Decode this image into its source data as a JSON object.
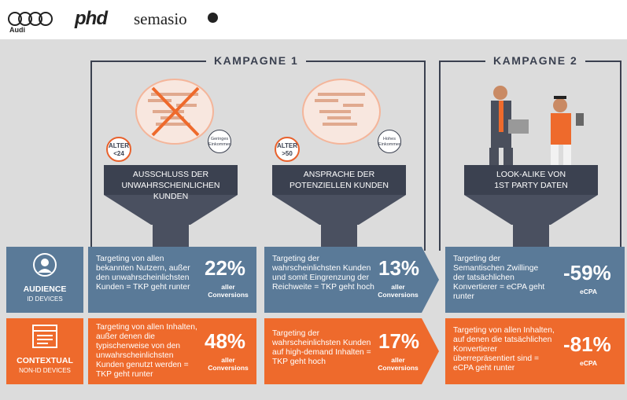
{
  "header": {
    "audi_label": "Audi",
    "phd_label": "phd",
    "semasio_label": "semasio"
  },
  "campaigns": {
    "k1": "KAMPAGNE 1",
    "k2": "KAMPAGNE 2"
  },
  "funnels": [
    {
      "label_line1": "AUSSCHLUSS DER",
      "label_line2": "UNWAHRSCHEINLICHEN KUNDEN",
      "age": "ALTER\n<24",
      "age_l1": "ALTER",
      "age_l2": "<24",
      "income_l1": "Geringes",
      "income_l2": "Einkommen"
    },
    {
      "label_line1": "ANSPRACHE DER",
      "label_line2": "POTENZIELLEN KUNDEN",
      "age_l1": "ALTER",
      "age_l2": ">50",
      "income_l1": "Hohes",
      "income_l2": "Einkommen"
    },
    {
      "label_line1": "LOOK-ALIKE VON",
      "label_line2": "1ST PARTY DATEN"
    }
  ],
  "rows": {
    "audience": {
      "title": "AUDIENCE",
      "subtitle": "ID DEVICES",
      "cells": [
        {
          "text": "Targeting von allen bekannten Nutzern, außer den unwahrscheinlichsten Kunden = TKP geht runter",
          "big": "22%",
          "small_l1": "aller",
          "small_l2": "Conversions"
        },
        {
          "text": "Targeting der wahrscheinlichsten Kunden und somit Eingrenzung der Reichweite = TKP geht hoch",
          "big": "13%",
          "small_l1": "aller",
          "small_l2": "Conversions"
        },
        {
          "text": "Targeting der Semantischen Zwillinge der tatsächlichen Konvertierer = eCPA geht runter",
          "big": "-59%",
          "small_l1": "eCPA",
          "small_l2": ""
        }
      ]
    },
    "contextual": {
      "title": "CONTEXTUAL",
      "subtitle": "NON-ID DEVICES",
      "cells": [
        {
          "text": "Targeting von allen Inhalten, außer denen die typischerweise von den unwahrscheinlichsten Kunden genutzt werden = TKP geht runter",
          "big": "48%",
          "small_l1": "aller",
          "small_l2": "Conversions"
        },
        {
          "text": "Targeting der wahrscheinlichsten Kunden auf high-demand Inhalten = TKP geht hoch",
          "big": "17%",
          "small_l1": "aller",
          "small_l2": "Conversions"
        },
        {
          "text": "Targeting von allen Inhalten, auf denen die tatsächlichen Konvertierer überrepräsentiert sind = eCPA geht runter",
          "big": "-81%",
          "small_l1": "eCPA",
          "small_l2": ""
        }
      ]
    }
  },
  "colors": {
    "navy": "#3b4150",
    "blue": "#5a7a98",
    "orange": "#ee6a2c"
  }
}
